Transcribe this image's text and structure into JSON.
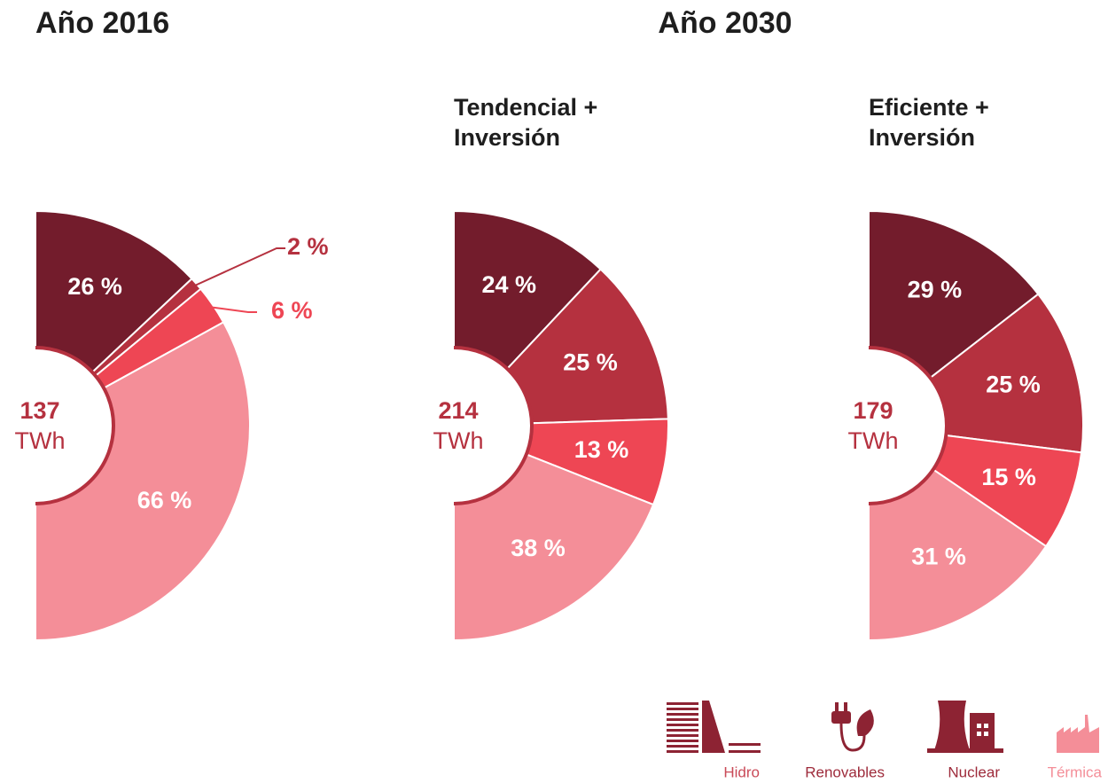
{
  "headings": [
    "Año 2016",
    "Año 2030"
  ],
  "chart_data": [
    {
      "type": "pie",
      "total": 137,
      "unit": "TWh",
      "values": [
        26,
        2,
        6,
        66
      ],
      "value_labels": [
        "26 %",
        "2 %",
        "6 %",
        "66 %"
      ],
      "colors": [
        "#731c2c",
        "#b5313f",
        "#ee4654",
        "#f48e98"
      ]
    },
    {
      "type": "pie",
      "title": [
        "Tendencial +",
        "Inversión"
      ],
      "total": 214,
      "unit": "TWh",
      "values": [
        24,
        25,
        13,
        38
      ],
      "value_labels": [
        "24 %",
        "25 %",
        "13 %",
        "38 %"
      ],
      "colors": [
        "#731c2c",
        "#b5313f",
        "#ee4654",
        "#f48e98"
      ]
    },
    {
      "type": "pie",
      "title": [
        "Eficiente +",
        "Inversión"
      ],
      "total": 179,
      "unit": "TWh",
      "values": [
        29,
        25,
        15,
        31
      ],
      "value_labels": [
        "29 %",
        "25 %",
        "15 %",
        "31 %"
      ],
      "colors": [
        "#731c2c",
        "#b5313f",
        "#ee4654",
        "#f48e98"
      ]
    }
  ],
  "legend": {
    "labels": [
      "Hidro",
      "Renovables",
      "Nuclear",
      "Térmica"
    ],
    "colors": [
      "#c94a58",
      "#9e2b3b",
      "#9e2b3b",
      "#f48e98"
    ]
  }
}
